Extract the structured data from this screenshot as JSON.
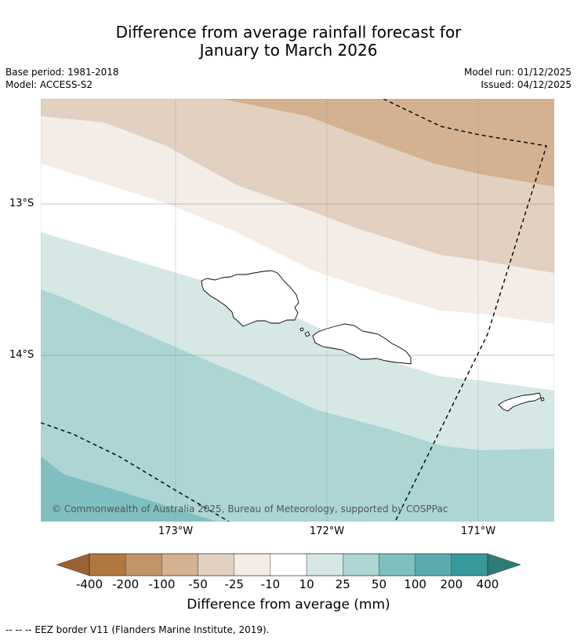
{
  "title": {
    "line1": "Difference from average rainfall forecast for",
    "line2": "January to March 2026"
  },
  "meta": {
    "base_period": "Base period: 1981-2018",
    "model": "Model: ACCESS-S2",
    "model_run": "Model run: 01/12/2025",
    "issued": "Issued: 04/12/2025"
  },
  "map": {
    "lat_labels": [
      "13°S",
      "14°S"
    ],
    "lon_labels": [
      "173°W",
      "172°W",
      "171°W"
    ],
    "copyright": "© Commonwealth of Australia 2025, Bureau of Meteorology, supported by COSPPac"
  },
  "colorbar": {
    "ticks": [
      "-400",
      "-200",
      "-100",
      "-50",
      "-25",
      "-10",
      "10",
      "25",
      "50",
      "100",
      "200",
      "400"
    ],
    "colors": [
      "#9c6130",
      "#b0783e",
      "#c29568",
      "#d3b191",
      "#e2d0c0",
      "#f4ece6",
      "#ffffff",
      "#d5e8e6",
      "#acd5d4",
      "#80bfbf",
      "#5aacac",
      "#36999a",
      "#2e7b78"
    ],
    "label": "Difference from average (mm)"
  },
  "footnote": "--  --  -- EEZ border V11 (Flanders Marine Institute, 2019)."
}
